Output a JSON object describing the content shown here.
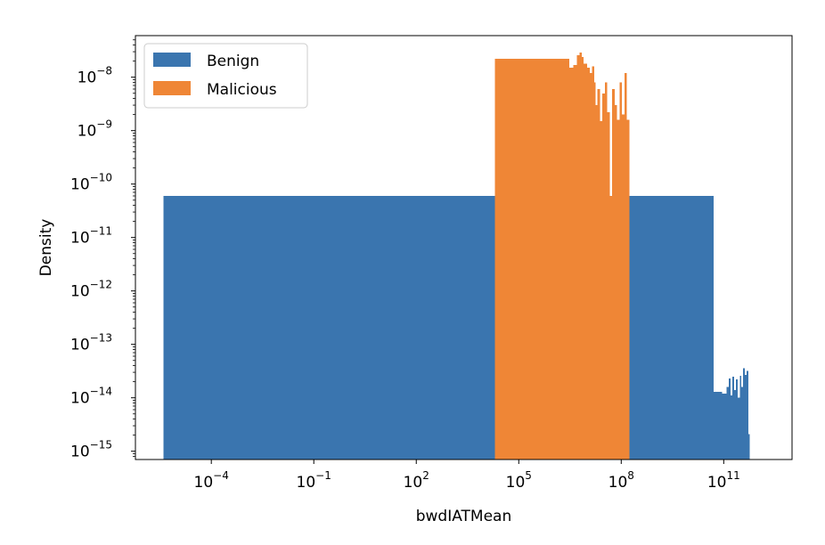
{
  "chart_data": {
    "type": "histogram",
    "xlabel": "bwdIATMean",
    "ylabel": "Density",
    "xscale": "log",
    "yscale": "log",
    "xlim": [
      6e-07,
      10000000000000.0
    ],
    "ylim": [
      7e-16,
      6e-08
    ],
    "x_ticks": [
      {
        "exp": -4,
        "label": "10"
      },
      {
        "exp": -1,
        "label": "10"
      },
      {
        "exp": 2,
        "label": "10"
      },
      {
        "exp": 5,
        "label": "10"
      },
      {
        "exp": 8,
        "label": "10"
      },
      {
        "exp": 11,
        "label": "10"
      }
    ],
    "y_ticks": [
      {
        "exp": -15,
        "label": "10"
      },
      {
        "exp": -14,
        "label": "10"
      },
      {
        "exp": -13,
        "label": "10"
      },
      {
        "exp": -12,
        "label": "10"
      },
      {
        "exp": -11,
        "label": "10"
      },
      {
        "exp": -10,
        "label": "10"
      },
      {
        "exp": -9,
        "label": "10"
      },
      {
        "exp": -8,
        "label": "10"
      }
    ],
    "legend": {
      "location": "upper-left",
      "entries": [
        {
          "name": "Benign",
          "color": "#3a75af"
        },
        {
          "name": "Malicious",
          "color": "#ef8636"
        }
      ]
    },
    "series": [
      {
        "name": "Benign",
        "color": "#3a75af",
        "bins": [
          {
            "x0": 4e-06,
            "x1": 50000000000.0,
            "y": 6e-11
          },
          {
            "x0": 50000000000.0,
            "x1": 90000000000.0,
            "y": 1.3e-14
          },
          {
            "x0": 90000000000.0,
            "x1": 120000000000.0,
            "y": 1.2e-14
          },
          {
            "x0": 120000000000.0,
            "x1": 140000000000.0,
            "y": 1.6e-14
          },
          {
            "x0": 140000000000.0,
            "x1": 160000000000.0,
            "y": 2.3e-14
          },
          {
            "x0": 160000000000.0,
            "x1": 180000000000.0,
            "y": 1.1e-14
          },
          {
            "x0": 180000000000.0,
            "x1": 200000000000.0,
            "y": 2.5e-14
          },
          {
            "x0": 200000000000.0,
            "x1": 230000000000.0,
            "y": 1.4e-14
          },
          {
            "x0": 230000000000.0,
            "x1": 260000000000.0,
            "y": 2.2e-14
          },
          {
            "x0": 260000000000.0,
            "x1": 300000000000.0,
            "y": 1e-14
          },
          {
            "x0": 300000000000.0,
            "x1": 330000000000.0,
            "y": 2.6e-14
          },
          {
            "x0": 330000000000.0,
            "x1": 370000000000.0,
            "y": 1.6e-14
          },
          {
            "x0": 370000000000.0,
            "x1": 420000000000.0,
            "y": 3.6e-14
          },
          {
            "x0": 420000000000.0,
            "x1": 470000000000.0,
            "y": 2.7e-14
          },
          {
            "x0": 470000000000.0,
            "x1": 520000000000.0,
            "y": 3.2e-14
          },
          {
            "x0": 520000000000.0,
            "x1": 580000000000.0,
            "y": 2.1e-15
          }
        ]
      },
      {
        "name": "Malicious",
        "color": "#ef8636",
        "bins": [
          {
            "x0": 20000.0,
            "x1": 3000000.0,
            "y": 2.2e-08
          },
          {
            "x0": 3000000.0,
            "x1": 4000000.0,
            "y": 1.5e-08
          },
          {
            "x0": 4000000.0,
            "x1": 5000000.0,
            "y": 1.7e-08
          },
          {
            "x0": 5000000.0,
            "x1": 6000000.0,
            "y": 2.6e-08
          },
          {
            "x0": 6000000.0,
            "x1": 7000000.0,
            "y": 2.9e-08
          },
          {
            "x0": 7000000.0,
            "x1": 8000000.0,
            "y": 2.4e-08
          },
          {
            "x0": 8000000.0,
            "x1": 10000000.0,
            "y": 1.8e-08
          },
          {
            "x0": 10000000.0,
            "x1": 12000000.0,
            "y": 1.5e-08
          },
          {
            "x0": 12000000.0,
            "x1": 14000000.0,
            "y": 1.2e-08
          },
          {
            "x0": 14000000.0,
            "x1": 16000000.0,
            "y": 1.6e-08
          },
          {
            "x0": 16000000.0,
            "x1": 18000000.0,
            "y": 8e-09
          },
          {
            "x0": 18000000.0,
            "x1": 20000000.0,
            "y": 3e-09
          },
          {
            "x0": 20000000.0,
            "x1": 24000000.0,
            "y": 6e-09
          },
          {
            "x0": 24000000.0,
            "x1": 28000000.0,
            "y": 1.5e-09
          },
          {
            "x0": 28000000.0,
            "x1": 33000000.0,
            "y": 5e-09
          },
          {
            "x0": 33000000.0,
            "x1": 39000000.0,
            "y": 8e-09
          },
          {
            "x0": 39000000.0,
            "x1": 46000000.0,
            "y": 2.2e-09
          },
          {
            "x0": 46000000.0,
            "x1": 54000000.0,
            "y": 6e-11
          },
          {
            "x0": 54000000.0,
            "x1": 64000000.0,
            "y": 6e-09
          },
          {
            "x0": 64000000.0,
            "x1": 75000000.0,
            "y": 3e-09
          },
          {
            "x0": 75000000.0,
            "x1": 89000000.0,
            "y": 1.6e-09
          },
          {
            "x0": 89000000.0,
            "x1": 105000000.0,
            "y": 8e-09
          },
          {
            "x0": 105000000.0,
            "x1": 124000000.0,
            "y": 2e-09
          },
          {
            "x0": 124000000.0,
            "x1": 146000000.0,
            "y": 1.2e-08
          },
          {
            "x0": 146000000.0,
            "x1": 172000000.0,
            "y": 1.6e-09
          }
        ]
      }
    ]
  }
}
